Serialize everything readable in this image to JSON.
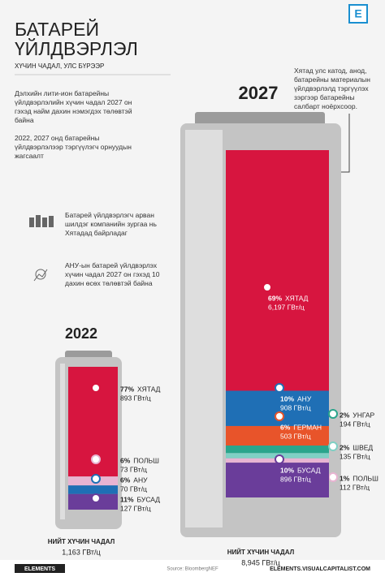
{
  "header": {
    "title_lines": [
      "БАТАРЕЙ",
      "ҮЙЛДВЭРЛЭЛ"
    ],
    "subtitle": "ХҮЧИН ЧАДАЛ, УЛС БҮРЭЭР"
  },
  "notes": [
    "Дэлхийн лити-ион батарейны үйлдвэрлэлийн хүчин чадал 2027 он гэхэд найм дахин нэмэгдэх төлөвтэй байна",
    "2022, 2027 онд батарейны үйлдвэрлэлээр тэргүүлэгч орнуудын жагсаалт",
    "Батарей үйлдвэрлэгч арван шилдэг компанийн зургаа нь Хятадад байрладаг",
    "АНУ-ын батарей үйлдвэрлэх хүчин чадал 2027 он гэхэд 10 дахин өсөх төлөвтэй байна"
  ],
  "callout": "Хятад улс катод, анод, батарейны материалын үйлдвэрлэлд тэргүүлэх зэргээр батарейны салбарт ноёрхсоор.",
  "chart_data": [
    {
      "type": "battery",
      "title": "2022",
      "categories": [
        "ХЯТАД",
        "ПОЛЬШ",
        "АНУ",
        "БУСАД"
      ],
      "share_labels": [
        "77%",
        "6%",
        "6%",
        "11%"
      ],
      "values": [
        893,
        73,
        70,
        127
      ],
      "value_labels": [
        "893 ГВт/ц",
        "73 ГВт/ц",
        "70 ГВт/ц",
        "127 ГВт/ц"
      ],
      "colors": [
        "#d7153f",
        "#e8b4d2",
        "#1f6fb5",
        "#6a3d9a"
      ],
      "total": 1163,
      "total_title": "НИЙТ ХҮЧИН ЧАДАЛ",
      "total_label": "1,163 ГВт/ц"
    },
    {
      "type": "battery",
      "title": "2027",
      "categories": [
        "ХЯТАД",
        "АНУ",
        "ГЕРМАН",
        "УНГАР",
        "ШВЕД",
        "ПОЛЬШ",
        "БУСАД"
      ],
      "share_labels": [
        "69%",
        "10%",
        "6%",
        "2%",
        "2%",
        "1%",
        "10%"
      ],
      "values": [
        6197,
        908,
        503,
        194,
        135,
        112,
        896
      ],
      "value_labels": [
        "6,197 ГВт/ц",
        "908 ГВт/ц",
        "503 ГВт/ц",
        "194 ГВт/ц",
        "135 ГВт/ц",
        "112 ГВт/ц",
        "896 ГВт/ц"
      ],
      "colors": [
        "#d7153f",
        "#1f6fb5",
        "#e8542a",
        "#2aa58c",
        "#7fd0c4",
        "#e8b4d2",
        "#6a3d9a"
      ],
      "total": 8945,
      "total_title": "НИЙТ ХҮЧИН ЧАДАЛ",
      "total_label": "8,945 ГВт/ц"
    }
  ],
  "footer": {
    "brand": "ELEMENTS",
    "source": "Source: BloombergNEF",
    "url": "ELEMENTS.VISUALCAPITALIST.COM"
  }
}
